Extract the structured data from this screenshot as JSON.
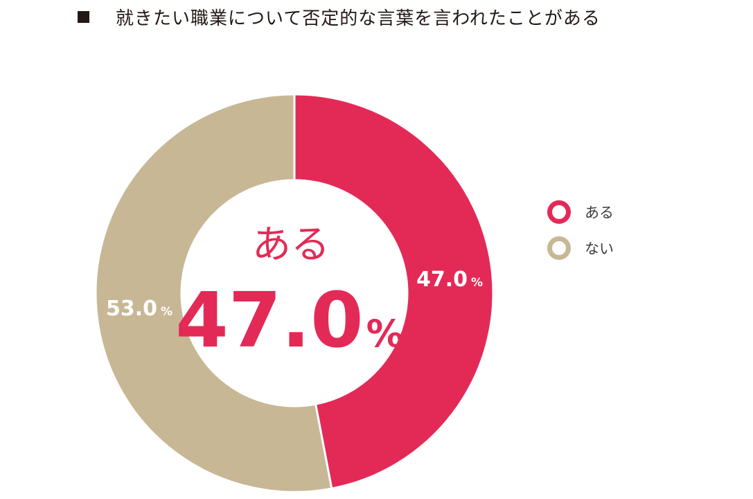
{
  "chart_data": {
    "type": "pie",
    "title": "就きたい職業について否定的な言葉を言われたことがある",
    "categories": [
      "ある",
      "ない"
    ],
    "values": [
      47.0,
      53.0
    ],
    "value_labels": [
      "47.0",
      "53.0"
    ],
    "unit": "%",
    "colors": [
      "#e32a56",
      "#c7b795"
    ],
    "center_label": "ある",
    "center_value": "47.0",
    "center_unit": "%",
    "legend_position": "right",
    "donut": true
  }
}
